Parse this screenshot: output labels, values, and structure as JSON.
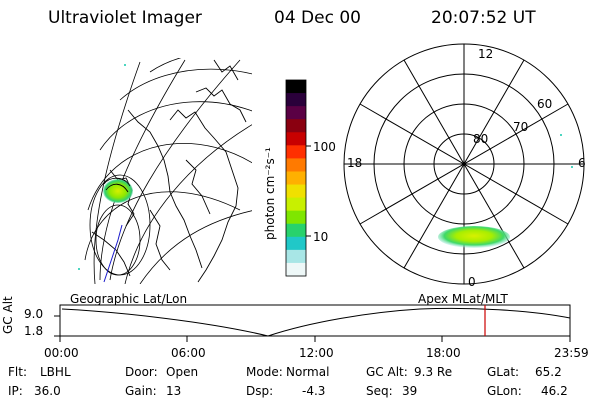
{
  "header": {
    "instrument": "Ultraviolet Imager",
    "date": "04 Dec 00",
    "time": "20:07:52 UT"
  },
  "colorbar": {
    "unit_label": "photon cm⁻²s⁻¹",
    "ticks": [
      "100",
      "10"
    ],
    "colors": [
      "#000000",
      "#2a003a",
      "#5a0044",
      "#8a0010",
      "#c80000",
      "#ff3000",
      "#ff7a00",
      "#ffb000",
      "#f0e000",
      "#c8f000",
      "#7fe600",
      "#28d26c",
      "#20c8c8",
      "#a8e6e6",
      "#eef8f8"
    ]
  },
  "map_panel": {
    "label": "Geographic Lat/Lon"
  },
  "polar_panel": {
    "label": "Apex MLat/MLT",
    "lat_labels": [
      "80",
      "70",
      "60"
    ],
    "mlt_labels": [
      "12",
      "18",
      "6",
      "0"
    ]
  },
  "timeline": {
    "y_axis_label": "GC Alt",
    "y_ticks": [
      "9.0",
      "1.8"
    ],
    "x_ticks": [
      "00:00",
      "06:00",
      "12:00",
      "18:00",
      "23:59"
    ],
    "marker_color": "#cc0000"
  },
  "info": {
    "row1": [
      {
        "k": "Flt:",
        "v": "LBHL"
      },
      {
        "k": "Door:",
        "v": "Open"
      },
      {
        "k": "Mode:",
        "v": "Normal"
      },
      {
        "k": "GC Alt:",
        "v": "9.3 Re"
      },
      {
        "k": "GLat:",
        "v": "65.2"
      }
    ],
    "row2": [
      {
        "k": "IP:",
        "v": "36.0"
      },
      {
        "k": "Gain:",
        "v": "13"
      },
      {
        "k": "Dsp:",
        "v": "-4.3"
      },
      {
        "k": "Seq:",
        "v": "39"
      },
      {
        "k": "GLon:",
        "v": "46.2"
      }
    ]
  }
}
